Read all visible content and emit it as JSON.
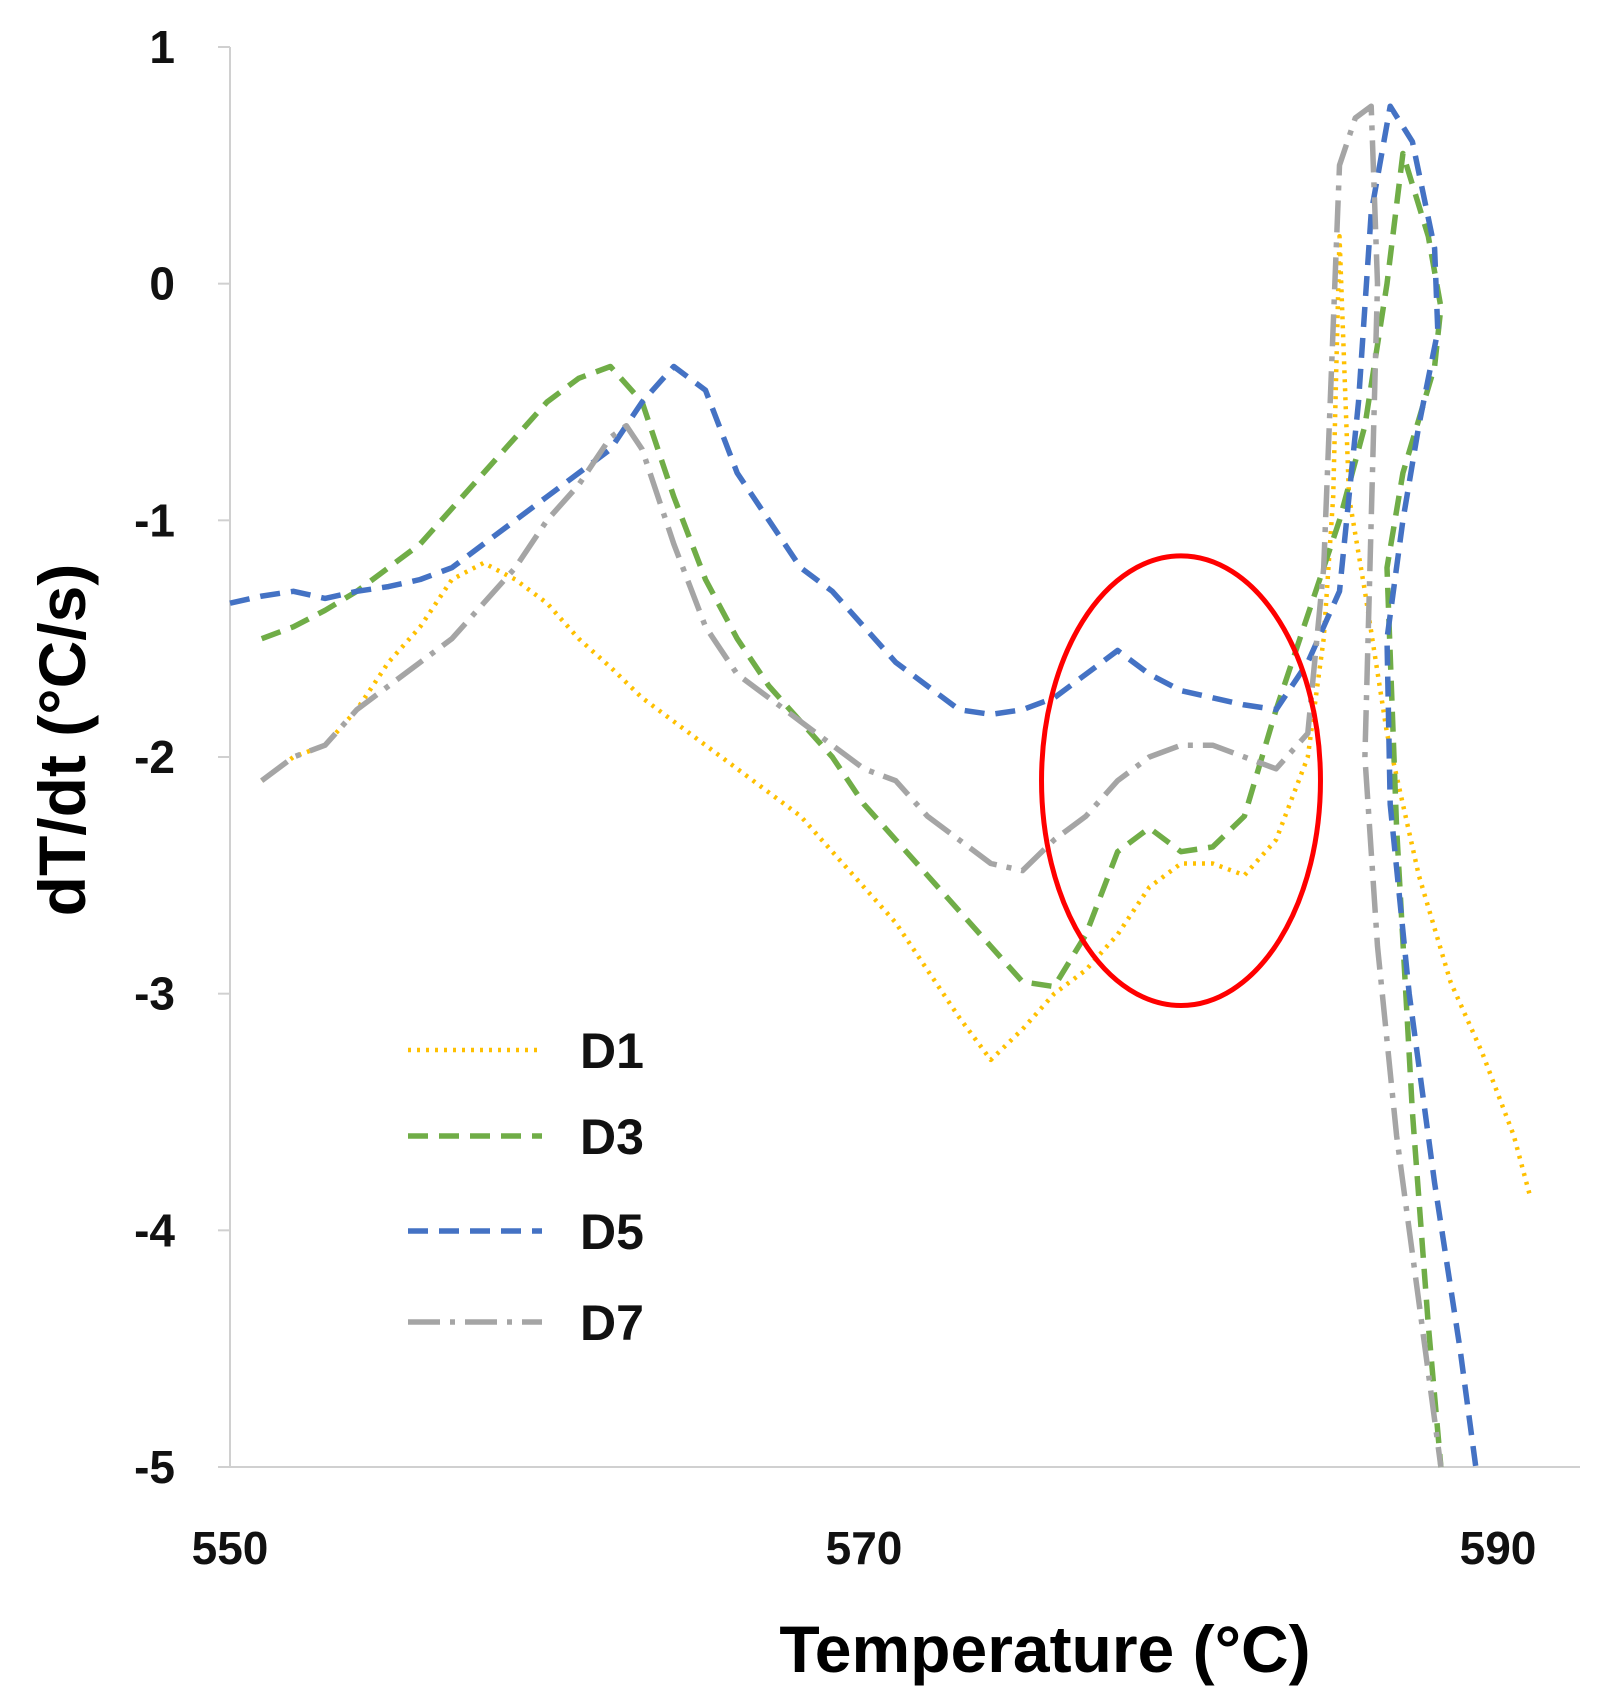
{
  "chart_data": {
    "type": "line",
    "title": "",
    "xlabel": "Temperature (°C)",
    "ylabel": "dT/dt (°C/s)",
    "xlim": [
      550,
      592
    ],
    "ylim": [
      -5,
      1
    ],
    "xticks": [
      550,
      570,
      590
    ],
    "yticks": [
      1,
      0,
      -1,
      -2,
      -3,
      -4,
      -5
    ],
    "grid": false,
    "legend_position": "bottom-left",
    "highlight": {
      "shape": "ellipse",
      "color": "#ff0000",
      "center": [
        580,
        -2.1
      ],
      "radius": [
        4.4,
        0.95
      ]
    },
    "series": [
      {
        "name": "D1",
        "color": "#ffc000",
        "style": "dotted",
        "points": [
          [
            551,
            -2.1
          ],
          [
            552,
            -2
          ],
          [
            553,
            -1.95
          ],
          [
            554,
            -1.8
          ],
          [
            555,
            -1.6
          ],
          [
            556,
            -1.45
          ],
          [
            557,
            -1.25
          ],
          [
            558,
            -1.18
          ],
          [
            559,
            -1.25
          ],
          [
            560,
            -1.35
          ],
          [
            561,
            -1.5
          ],
          [
            562,
            -1.62
          ],
          [
            563,
            -1.75
          ],
          [
            564,
            -1.85
          ],
          [
            565,
            -1.95
          ],
          [
            566,
            -2.05
          ],
          [
            567,
            -2.15
          ],
          [
            568,
            -2.25
          ],
          [
            569,
            -2.4
          ],
          [
            570,
            -2.55
          ],
          [
            571,
            -2.7
          ],
          [
            572,
            -2.9
          ],
          [
            573,
            -3.1
          ],
          [
            574,
            -3.28
          ],
          [
            575,
            -3.15
          ],
          [
            576,
            -3.0
          ],
          [
            577,
            -2.9
          ],
          [
            578,
            -2.75
          ],
          [
            579,
            -2.55
          ],
          [
            580,
            -2.45
          ],
          [
            581,
            -2.45
          ],
          [
            582,
            -2.5
          ],
          [
            583,
            -2.35
          ],
          [
            584,
            -2.0
          ],
          [
            584.5,
            -1.5
          ],
          [
            584.8,
            -0.9
          ],
          [
            585,
            0.2
          ],
          [
            585.3,
            -0.9
          ],
          [
            585.8,
            -1.3
          ],
          [
            586.5,
            -1.9
          ],
          [
            587.5,
            -2.5
          ],
          [
            588.5,
            -2.95
          ],
          [
            589.5,
            -3.25
          ],
          [
            590.5,
            -3.6
          ],
          [
            591,
            -3.85
          ]
        ]
      },
      {
        "name": "D3",
        "color": "#70ad47",
        "style": "dashed",
        "points": [
          [
            551,
            -1.5
          ],
          [
            552,
            -1.45
          ],
          [
            553,
            -1.38
          ],
          [
            554,
            -1.3
          ],
          [
            555,
            -1.2
          ],
          [
            556,
            -1.1
          ],
          [
            557,
            -0.95
          ],
          [
            558,
            -0.8
          ],
          [
            559,
            -0.65
          ],
          [
            560,
            -0.5
          ],
          [
            561,
            -0.4
          ],
          [
            562,
            -0.35
          ],
          [
            563,
            -0.5
          ],
          [
            564,
            -0.9
          ],
          [
            565,
            -1.25
          ],
          [
            566,
            -1.5
          ],
          [
            567,
            -1.7
          ],
          [
            568,
            -1.85
          ],
          [
            569,
            -2.0
          ],
          [
            570,
            -2.2
          ],
          [
            571,
            -2.35
          ],
          [
            572,
            -2.5
          ],
          [
            573,
            -2.65
          ],
          [
            574,
            -2.8
          ],
          [
            575,
            -2.95
          ],
          [
            576,
            -2.97
          ],
          [
            577,
            -2.75
          ],
          [
            578,
            -2.4
          ],
          [
            579,
            -2.3
          ],
          [
            580,
            -2.4
          ],
          [
            581,
            -2.38
          ],
          [
            582,
            -2.25
          ],
          [
            583,
            -1.8
          ],
          [
            584,
            -1.4
          ],
          [
            585,
            -1.0
          ],
          [
            585.8,
            -0.6
          ],
          [
            586.5,
            0.0
          ],
          [
            587,
            0.55
          ],
          [
            587.8,
            0.2
          ],
          [
            588.2,
            -0.1
          ],
          [
            588,
            -0.35
          ],
          [
            587,
            -0.8
          ],
          [
            586.5,
            -1.2
          ],
          [
            586.8,
            -2.3
          ],
          [
            587.3,
            -3.5
          ],
          [
            587.8,
            -4.4
          ],
          [
            588.2,
            -5.0
          ]
        ]
      },
      {
        "name": "D5",
        "color": "#4472c4",
        "style": "dashed",
        "points": [
          [
            550,
            -1.35
          ],
          [
            551,
            -1.32
          ],
          [
            552,
            -1.3
          ],
          [
            553,
            -1.33
          ],
          [
            554,
            -1.3
          ],
          [
            555,
            -1.28
          ],
          [
            556,
            -1.25
          ],
          [
            557,
            -1.2
          ],
          [
            558,
            -1.1
          ],
          [
            559,
            -1.0
          ],
          [
            560,
            -0.9
          ],
          [
            561,
            -0.8
          ],
          [
            562,
            -0.7
          ],
          [
            563,
            -0.5
          ],
          [
            564,
            -0.35
          ],
          [
            565,
            -0.45
          ],
          [
            566,
            -0.8
          ],
          [
            567,
            -1.0
          ],
          [
            568,
            -1.2
          ],
          [
            569,
            -1.3
          ],
          [
            570,
            -1.45
          ],
          [
            571,
            -1.6
          ],
          [
            572,
            -1.7
          ],
          [
            573,
            -1.8
          ],
          [
            574,
            -1.82
          ],
          [
            575,
            -1.8
          ],
          [
            576,
            -1.75
          ],
          [
            577,
            -1.65
          ],
          [
            578,
            -1.55
          ],
          [
            579,
            -1.65
          ],
          [
            580,
            -1.72
          ],
          [
            581,
            -1.75
          ],
          [
            582,
            -1.78
          ],
          [
            583,
            -1.8
          ],
          [
            584,
            -1.6
          ],
          [
            585,
            -1.3
          ],
          [
            585.6,
            -0.5
          ],
          [
            586,
            0.3
          ],
          [
            586.6,
            0.75
          ],
          [
            587.3,
            0.6
          ],
          [
            588,
            0.15
          ],
          [
            588.1,
            -0.2
          ],
          [
            587.5,
            -0.6
          ],
          [
            587,
            -1.0
          ],
          [
            586.5,
            -1.5
          ],
          [
            586.6,
            -2.2
          ],
          [
            587.2,
            -3.0
          ],
          [
            588,
            -3.8
          ],
          [
            588.8,
            -4.5
          ],
          [
            589.3,
            -5.0
          ]
        ]
      },
      {
        "name": "D7",
        "color": "#a5a5a5",
        "style": "dashdot",
        "points": [
          [
            551,
            -2.1
          ],
          [
            552,
            -2.0
          ],
          [
            553,
            -1.95
          ],
          [
            554,
            -1.8
          ],
          [
            555,
            -1.7
          ],
          [
            556,
            -1.6
          ],
          [
            557,
            -1.5
          ],
          [
            558,
            -1.35
          ],
          [
            559,
            -1.2
          ],
          [
            560,
            -1.0
          ],
          [
            561,
            -0.85
          ],
          [
            562,
            -0.65
          ],
          [
            562.5,
            -0.6
          ],
          [
            563,
            -0.7
          ],
          [
            564,
            -1.1
          ],
          [
            565,
            -1.45
          ],
          [
            566,
            -1.65
          ],
          [
            567,
            -1.75
          ],
          [
            568,
            -1.85
          ],
          [
            569,
            -1.95
          ],
          [
            570,
            -2.05
          ],
          [
            571,
            -2.1
          ],
          [
            572,
            -2.25
          ],
          [
            573,
            -2.35
          ],
          [
            574,
            -2.45
          ],
          [
            575,
            -2.48
          ],
          [
            576,
            -2.35
          ],
          [
            577,
            -2.25
          ],
          [
            578,
            -2.1
          ],
          [
            579,
            -2.0
          ],
          [
            580,
            -1.95
          ],
          [
            581,
            -1.95
          ],
          [
            582,
            -2.0
          ],
          [
            583,
            -2.05
          ],
          [
            584,
            -1.9
          ],
          [
            584.5,
            -1.2
          ],
          [
            585,
            0.5
          ],
          [
            585.5,
            0.7
          ],
          [
            586,
            0.75
          ],
          [
            586.2,
            0.0
          ],
          [
            586,
            -1.0
          ],
          [
            585.8,
            -2.0
          ],
          [
            586.2,
            -2.8
          ],
          [
            586.8,
            -3.6
          ],
          [
            587.5,
            -4.3
          ],
          [
            588.2,
            -5.0
          ]
        ]
      }
    ]
  }
}
